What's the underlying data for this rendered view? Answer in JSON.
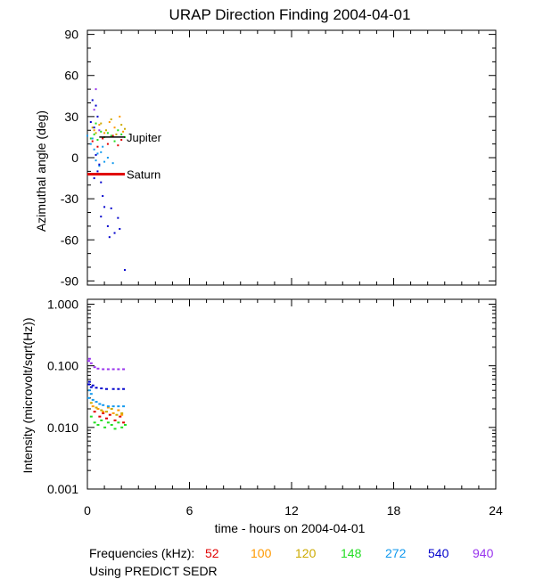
{
  "chart_data": {
    "title": "URAP Direction Finding  2004-04-01",
    "xlabel": "time - hours on 2004-04-01",
    "xlim": [
      0,
      24
    ],
    "x_ticks": [
      "0",
      "6",
      "12",
      "18",
      "24"
    ],
    "x_tick_values": [
      0,
      6,
      12,
      18,
      24
    ],
    "frequencies_label": "Frequencies (kHz):",
    "frequencies": [
      {
        "name": "52",
        "color": "#e00000"
      },
      {
        "name": "100",
        "color": "#ff9900"
      },
      {
        "name": "120",
        "color": "#ccaa00"
      },
      {
        "name": "148",
        "color": "#22dd22"
      },
      {
        "name": "272",
        "color": "#1199ee"
      },
      {
        "name": "540",
        "color": "#0000cc"
      },
      {
        "name": "940",
        "color": "#9933ee"
      }
    ],
    "footnote": "Using PREDICT SEDR",
    "panels": [
      {
        "type": "scatter",
        "ylabel": "Azimuthal angle (deg)",
        "ylim": [
          -93,
          93
        ],
        "y_ticks": [
          "90",
          "60",
          "30",
          "0",
          "-30",
          "-60",
          "-90"
        ],
        "y_tick_values": [
          90,
          60,
          30,
          0,
          -30,
          -60,
          -90
        ],
        "reference_lines": [
          {
            "name": "Jupiter",
            "y": 15,
            "x_start": 0.7,
            "x_end": 2.2,
            "color": "#000000"
          },
          {
            "name": "Saturn",
            "y": -12,
            "x_start": 0.0,
            "x_end": 2.2,
            "color": "#e00000"
          }
        ]
      },
      {
        "type": "scatter",
        "scale": "log",
        "ylabel": "Intensity (microvolt/sqrt(Hz))",
        "ylim": [
          0.001,
          1.2
        ],
        "y_ticks": [
          "1.000",
          "0.100",
          "0.010",
          "0.001"
        ],
        "y_tick_values": [
          1,
          0.1,
          0.01,
          0.001
        ]
      }
    ],
    "series": [
      {
        "name": "52",
        "color": "#e00000",
        "azimuth": [
          [
            0.3,
            12
          ],
          [
            0.6,
            8
          ],
          [
            0.9,
            14
          ],
          [
            1.2,
            10
          ],
          [
            1.5,
            16
          ],
          [
            1.8,
            9
          ],
          [
            2.0,
            13
          ]
        ],
        "intensity": [
          [
            0.4,
            0.018
          ],
          [
            0.7,
            0.015
          ],
          [
            0.9,
            0.017
          ],
          [
            1.1,
            0.014
          ],
          [
            1.3,
            0.016
          ],
          [
            1.6,
            0.013
          ],
          [
            1.9,
            0.015
          ],
          [
            2.1,
            0.012
          ]
        ]
      },
      {
        "name": "100",
        "color": "#ff9900",
        "azimuth": [
          [
            0.4,
            20
          ],
          [
            0.7,
            24
          ],
          [
            1.0,
            18
          ],
          [
            1.3,
            26
          ],
          [
            1.6,
            22
          ],
          [
            1.9,
            30
          ],
          [
            2.1,
            19
          ]
        ],
        "intensity": [
          [
            0.3,
            0.022
          ],
          [
            0.6,
            0.02
          ],
          [
            0.9,
            0.018
          ],
          [
            1.2,
            0.021
          ],
          [
            1.5,
            0.017
          ],
          [
            1.8,
            0.019
          ],
          [
            2.0,
            0.016
          ]
        ]
      },
      {
        "name": "120",
        "color": "#ccaa00",
        "azimuth": [
          [
            0.3,
            22
          ],
          [
            0.5,
            18
          ],
          [
            0.8,
            25
          ],
          [
            1.1,
            20
          ],
          [
            1.4,
            28
          ],
          [
            1.7,
            17
          ],
          [
            2.0,
            24
          ],
          [
            2.2,
            21
          ]
        ],
        "intensity": [
          [
            0.2,
            0.025
          ],
          [
            0.5,
            0.021
          ],
          [
            0.8,
            0.019
          ],
          [
            1.1,
            0.018
          ],
          [
            1.4,
            0.02
          ],
          [
            1.7,
            0.016
          ],
          [
            2.0,
            0.017
          ]
        ]
      },
      {
        "name": "148",
        "color": "#22dd22",
        "azimuth": [
          [
            0.2,
            14
          ],
          [
            0.4,
            17
          ],
          [
            0.6,
            13
          ],
          [
            0.8,
            19
          ],
          [
            1.0,
            15
          ],
          [
            1.2,
            18
          ],
          [
            1.4,
            16
          ],
          [
            1.6,
            12
          ],
          [
            1.8,
            20
          ],
          [
            2.0,
            17
          ],
          [
            2.2,
            15
          ],
          [
            0.5,
            25
          ]
        ],
        "intensity": [
          [
            0.2,
            0.015
          ],
          [
            0.4,
            0.012
          ],
          [
            0.6,
            0.011
          ],
          [
            0.8,
            0.013
          ],
          [
            1.0,
            0.01
          ],
          [
            1.2,
            0.012
          ],
          [
            1.4,
            0.011
          ],
          [
            1.6,
            0.0095
          ],
          [
            1.8,
            0.012
          ],
          [
            2.0,
            0.01
          ],
          [
            2.2,
            0.011
          ]
        ]
      },
      {
        "name": "272",
        "color": "#1199ee",
        "azimuth": [
          [
            0.0,
            16
          ],
          [
            0.2,
            10
          ],
          [
            0.4,
            6
          ],
          [
            0.5,
            -2
          ],
          [
            0.6,
            3
          ],
          [
            0.7,
            -6
          ],
          [
            0.8,
            4
          ],
          [
            1.0,
            -3
          ],
          [
            1.2,
            0
          ],
          [
            1.5,
            -4
          ],
          [
            0.3,
            14
          ],
          [
            0.9,
            8
          ]
        ],
        "intensity": [
          [
            0.05,
            0.03
          ],
          [
            0.1,
            0.04
          ],
          [
            0.2,
            0.035
          ],
          [
            0.3,
            0.028
          ],
          [
            0.5,
            0.026
          ],
          [
            0.7,
            0.024
          ],
          [
            0.9,
            0.023
          ],
          [
            1.2,
            0.022
          ],
          [
            1.5,
            0.022
          ],
          [
            1.8,
            0.022
          ],
          [
            2.1,
            0.022
          ]
        ]
      },
      {
        "name": "540",
        "color": "#0000cc",
        "azimuth": [
          [
            0.3,
            42
          ],
          [
            0.5,
            38
          ],
          [
            0.6,
            30
          ],
          [
            0.2,
            26
          ],
          [
            0.4,
            22
          ],
          [
            0.7,
            -5
          ],
          [
            0.5,
            2
          ],
          [
            0.4,
            -15
          ],
          [
            0.8,
            -18
          ],
          [
            0.9,
            -28
          ],
          [
            1.0,
            -36
          ],
          [
            1.4,
            -37
          ],
          [
            1.8,
            -44
          ],
          [
            0.8,
            -43
          ],
          [
            1.2,
            -50
          ],
          [
            1.6,
            -55
          ],
          [
            1.9,
            -52
          ],
          [
            1.3,
            -58
          ],
          [
            2.2,
            -82
          ],
          [
            0.6,
            -10
          ]
        ],
        "intensity": [
          [
            0.05,
            0.05
          ],
          [
            0.1,
            0.055
          ],
          [
            0.2,
            0.045
          ],
          [
            0.3,
            0.048
          ],
          [
            0.5,
            0.044
          ],
          [
            0.8,
            0.043
          ],
          [
            1.1,
            0.042
          ],
          [
            1.5,
            0.042
          ],
          [
            1.8,
            0.042
          ],
          [
            2.1,
            0.042
          ]
        ]
      },
      {
        "name": "940",
        "color": "#9933ee",
        "azimuth": [
          [
            0.5,
            50
          ],
          [
            0.4,
            35
          ],
          [
            0.7,
            20
          ]
        ],
        "intensity": [
          [
            0.05,
            0.12
          ],
          [
            0.1,
            0.13
          ],
          [
            0.2,
            0.11
          ],
          [
            0.4,
            0.095
          ],
          [
            0.6,
            0.09
          ],
          [
            0.9,
            0.088
          ],
          [
            1.2,
            0.088
          ],
          [
            1.5,
            0.088
          ],
          [
            1.8,
            0.088
          ],
          [
            2.1,
            0.088
          ]
        ]
      }
    ]
  }
}
